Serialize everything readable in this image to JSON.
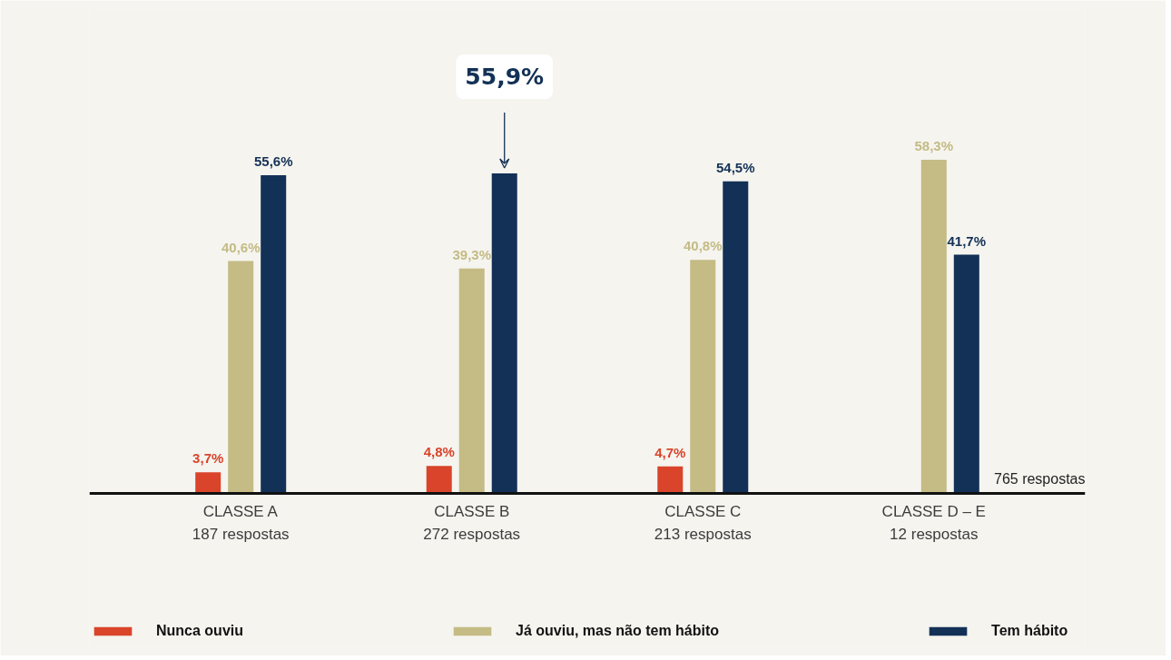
{
  "chart_data": {
    "type": "bar",
    "categories": [
      "CLASSE A\n187 respostas",
      "CLASSE B\n272 respostas",
      "CLASSE C\n213 respostas",
      "CLASSE D – E\n12 respostas"
    ],
    "series": [
      {
        "name": "Nunca ouviu",
        "color": "#d9442a",
        "values": [
          3.7,
          4.8,
          4.7,
          null
        ],
        "value_labels": [
          "3,7%",
          "4,8%",
          "4,7%",
          null
        ]
      },
      {
        "name": "Já ouviu, mas não tem hábito",
        "color": "#c4bb85",
        "values": [
          40.6,
          39.3,
          40.8,
          58.3
        ],
        "value_labels": [
          "40,6%",
          "39,3%",
          "40,8%",
          "58,3%"
        ]
      },
      {
        "name": "Tem hábito",
        "color": "#133156",
        "values": [
          55.6,
          55.9,
          54.5,
          41.7
        ],
        "value_labels": [
          "55,6%",
          null,
          "54,5%",
          "41,7%"
        ]
      }
    ],
    "annotations": [
      "55,9%",
      "765 respostas"
    ],
    "legend": "bottom"
  }
}
